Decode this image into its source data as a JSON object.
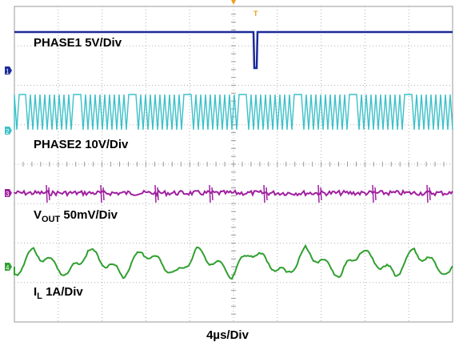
{
  "chart_data": {
    "type": "line",
    "title": "",
    "xlabel": "4µs/Div",
    "grid": true,
    "divisions": {
      "x": 10,
      "y": 8
    },
    "trigger_marker": "T",
    "series": [
      {
        "name": "PHASE1 5V/Div",
        "label_main": "PHASE1 5V/Div",
        "label_sub": "",
        "label_tail": "",
        "color": "#1a2a9a",
        "marker": "1",
        "waveform": "dc-high-with-single-dropout"
      },
      {
        "name": "PHASE2 10V/Div",
        "label_main": "PHASE2 10V/Div",
        "label_sub": "",
        "label_tail": "",
        "color": "#3cc0c8",
        "marker": "2",
        "waveform": "switching"
      },
      {
        "name": "VOUT 50mV/Div",
        "label_main": "V",
        "label_sub": "OUT",
        "label_tail": " 50mV/Div",
        "color": "#a020a0",
        "marker": "3",
        "waveform": "ripple-with-spikes"
      },
      {
        "name": "IL 1A/Div",
        "label_main": "I",
        "label_sub": "L",
        "label_tail": " 1A/Div",
        "color": "#30a030",
        "marker": "4",
        "waveform": "triangle"
      }
    ]
  }
}
